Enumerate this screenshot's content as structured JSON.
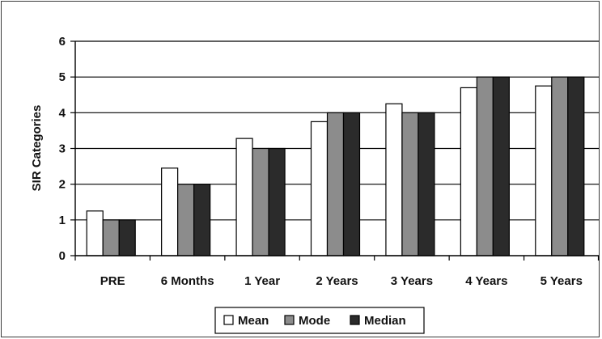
{
  "chart_data": {
    "type": "bar",
    "title": "",
    "xlabel": "",
    "ylabel": "SIR Categories",
    "ylim": [
      0,
      6
    ],
    "yticks": [
      0,
      1,
      2,
      3,
      4,
      5,
      6
    ],
    "grid": true,
    "legend_position": "bottom",
    "categories": [
      "PRE",
      "6 Months",
      "1 Year",
      "2 Years",
      "3 Years",
      "4 Years",
      "5 Years"
    ],
    "series": [
      {
        "name": "Mean",
        "color": "#ffffff",
        "values": [
          1.25,
          2.45,
          3.28,
          3.75,
          4.25,
          4.7,
          4.75
        ]
      },
      {
        "name": "Mode",
        "color": "#8c8c8c",
        "values": [
          1,
          2,
          3,
          4,
          4,
          5,
          5
        ]
      },
      {
        "name": "Median",
        "color": "#2b2b2b",
        "values": [
          1,
          2,
          3,
          4,
          4,
          5,
          5
        ]
      }
    ]
  }
}
